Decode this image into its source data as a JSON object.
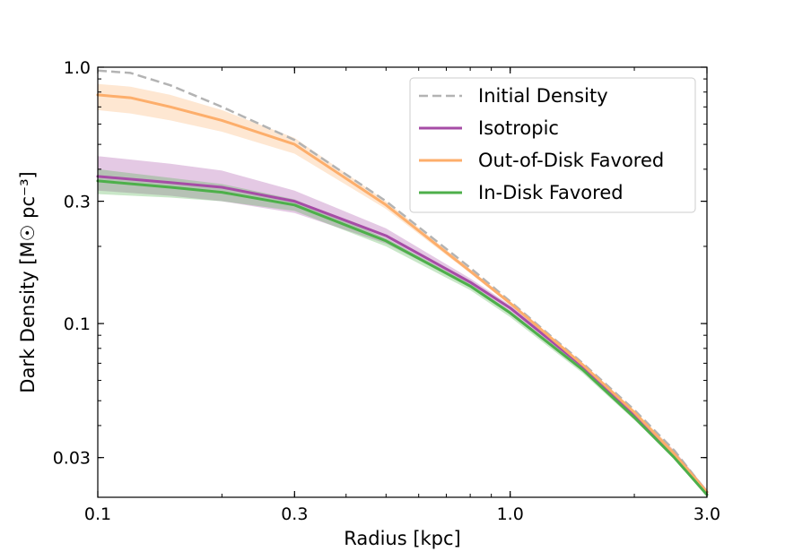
{
  "chart_data": {
    "type": "line",
    "xlabel": "Radius [kpc]",
    "ylabel": "Dark Density [M☉ pc⁻³]",
    "xscale": "log",
    "yscale": "log",
    "xlim": [
      0.1,
      3.0
    ],
    "ylim": [
      0.021,
      1.0
    ],
    "xticks": [
      0.1,
      0.3,
      1.0,
      3.0
    ],
    "xtick_labels": [
      "0.1",
      "0.3",
      "1.0",
      "3.0"
    ],
    "yticks": [
      0.03,
      0.1,
      0.3,
      1.0
    ],
    "ytick_labels": [
      "0.03",
      "0.1",
      "0.3",
      "1.0"
    ],
    "grid": false,
    "legend_position": "top-right",
    "series": [
      {
        "name": "Initial Density",
        "color": "#b3b3b3",
        "style": "dashed",
        "x": [
          0.1,
          0.12,
          0.15,
          0.2,
          0.3,
          0.5,
          0.8,
          1.0,
          1.5,
          2.0,
          2.5,
          3.0
        ],
        "y": [
          0.97,
          0.95,
          0.85,
          0.7,
          0.52,
          0.3,
          0.165,
          0.122,
          0.07,
          0.046,
          0.032,
          0.022
        ]
      },
      {
        "name": "Isotropic",
        "color": "#a64ca6",
        "style": "solid",
        "x": [
          0.1,
          0.15,
          0.2,
          0.3,
          0.5,
          0.8,
          1.0,
          1.5,
          2.0,
          2.5,
          3.0
        ],
        "y": [
          0.375,
          0.355,
          0.34,
          0.3,
          0.22,
          0.145,
          0.115,
          0.068,
          0.044,
          0.031,
          0.022
        ],
        "band": {
          "lower": [
            0.33,
            0.315,
            0.3,
            0.27,
            0.205,
            0.14,
            0.11,
            0.066,
            0.043,
            0.031,
            0.022
          ],
          "upper": [
            0.45,
            0.42,
            0.395,
            0.33,
            0.235,
            0.15,
            0.118,
            0.07,
            0.045,
            0.032,
            0.0225
          ]
        }
      },
      {
        "name": "Out-of-Disk Favored",
        "color": "#fdae6b",
        "style": "solid",
        "x": [
          0.1,
          0.12,
          0.15,
          0.2,
          0.3,
          0.5,
          0.8,
          1.0,
          1.5,
          2.0,
          2.5,
          3.0
        ],
        "y": [
          0.78,
          0.76,
          0.7,
          0.62,
          0.5,
          0.29,
          0.16,
          0.12,
          0.069,
          0.045,
          0.031,
          0.022
        ],
        "band": {
          "lower": [
            0.68,
            0.66,
            0.62,
            0.56,
            0.46,
            0.28,
            0.157,
            0.118,
            0.068,
            0.045,
            0.031,
            0.022
          ],
          "upper": [
            0.86,
            0.84,
            0.78,
            0.68,
            0.53,
            0.3,
            0.163,
            0.122,
            0.07,
            0.046,
            0.032,
            0.0225
          ]
        }
      },
      {
        "name": "In-Disk Favored",
        "color": "#4daf4a",
        "style": "solid",
        "x": [
          0.1,
          0.15,
          0.2,
          0.3,
          0.5,
          0.8,
          1.0,
          1.5,
          2.0,
          2.5,
          3.0
        ],
        "y": [
          0.36,
          0.34,
          0.325,
          0.29,
          0.21,
          0.14,
          0.11,
          0.066,
          0.043,
          0.03,
          0.0215
        ],
        "band": {
          "lower": [
            0.32,
            0.31,
            0.3,
            0.275,
            0.2,
            0.135,
            0.106,
            0.064,
            0.042,
            0.03,
            0.021
          ],
          "upper": [
            0.4,
            0.37,
            0.35,
            0.305,
            0.215,
            0.143,
            0.112,
            0.067,
            0.044,
            0.031,
            0.022
          ]
        }
      }
    ]
  }
}
